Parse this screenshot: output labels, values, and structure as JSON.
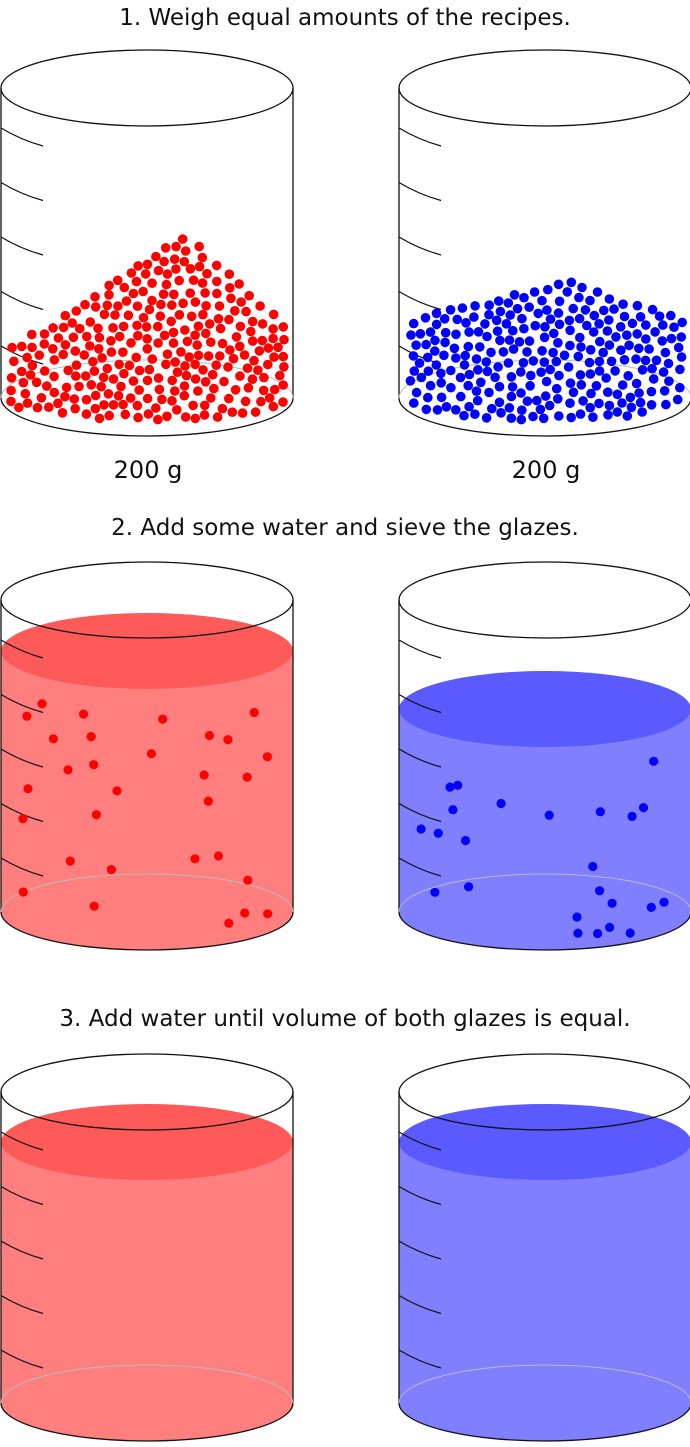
{
  "steps": [
    {
      "label": "1. Weigh equal amounts of the recipes."
    },
    {
      "label": "2. Add some water and sieve the glazes."
    },
    {
      "label": "3. Add water until volume of both glazes is equal."
    }
  ],
  "masses": {
    "left": "200 g",
    "right": "200 g"
  },
  "colors": {
    "red_particle": "#ff0000",
    "blue_particle": "#0000ff",
    "red_liquid": "#ff7f7f",
    "red_liquid_top": "#ff5a5a",
    "blue_liquid": "#7f7fff",
    "blue_liquid_top": "#5a5aff",
    "outline": "#111111"
  }
}
